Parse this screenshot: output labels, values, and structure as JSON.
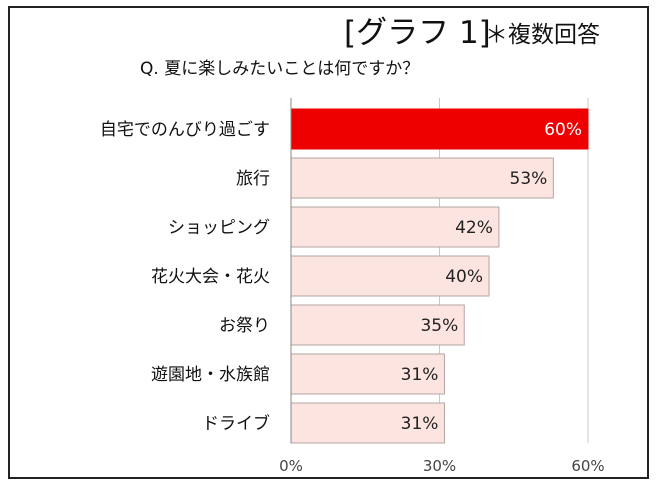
{
  "header": {
    "graph_label": "[グラフ 1]",
    "note": "＊複数回答",
    "question": "Q. 夏に楽しみたいことは何ですか？"
  },
  "chart_data": {
    "type": "bar",
    "orientation": "horizontal",
    "categories": [
      "自宅でのんびり過ごす",
      "旅行",
      "ショッピング",
      "花火大会・花火",
      "お祭り",
      "遊園地・水族館",
      "ドライブ"
    ],
    "values": [
      60,
      53,
      42,
      40,
      35,
      31,
      31
    ],
    "value_labels": [
      "60%",
      "53%",
      "42%",
      "40%",
      "35%",
      "31%",
      "31%"
    ],
    "xlim": [
      0,
      60
    ],
    "x_ticks": [
      0,
      30,
      60
    ],
    "x_tick_labels": [
      "0%",
      "30%",
      "60%"
    ],
    "grid": "vertical",
    "highlight_index": 0,
    "colors": {
      "highlight_fill": "#ee0000",
      "highlight_text": "#ffffff",
      "bar_fill": "#fce4e0",
      "bar_stroke": "#b3a6a3",
      "label_text": "#222222",
      "grid": "#c8c8c8"
    }
  }
}
